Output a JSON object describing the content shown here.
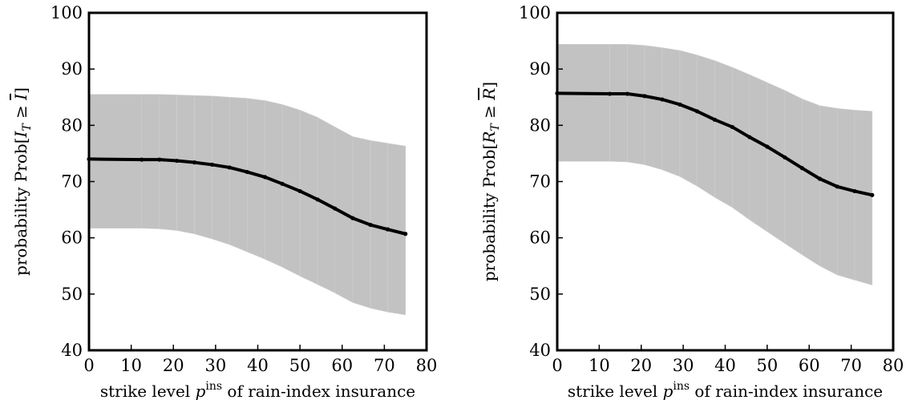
{
  "chart_data": [
    {
      "type": "line",
      "title": "",
      "xlabel": {
        "pre": "strike level ",
        "var": "p",
        "sup": "ins",
        "post": " of rain-index insurance"
      },
      "ylabel": {
        "pre": "probability Prob[",
        "var": "I",
        "sub": "T",
        "rel": " ≥ ",
        "bar": "I",
        "post": "]"
      },
      "xlim": [
        0,
        80
      ],
      "ylim": [
        40,
        100
      ],
      "xticks": [
        "0",
        "10",
        "20",
        "30",
        "40",
        "50",
        "60",
        "70",
        "80"
      ],
      "yticks": [
        "40",
        "50",
        "60",
        "70",
        "80",
        "90",
        "100"
      ],
      "grid": false,
      "series": [
        {
          "kind": "line",
          "x": [
            0,
            12.5,
            16.7,
            20.8,
            25,
            29.2,
            33.3,
            37.5,
            41.7,
            45.8,
            50,
            54.2,
            58.3,
            62.5,
            66.7,
            70.8,
            75
          ],
          "y": [
            74.0,
            73.9,
            73.9,
            73.7,
            73.4,
            73.0,
            72.5,
            71.7,
            70.8,
            69.6,
            68.3,
            66.8,
            65.2,
            63.5,
            62.3,
            61.5,
            60.7
          ]
        },
        {
          "kind": "band",
          "x": [
            0,
            12.5,
            16.7,
            20.8,
            25,
            29.2,
            33.3,
            37.5,
            41.7,
            45.8,
            50,
            54.2,
            58.3,
            62.5,
            66.7,
            70.8,
            75
          ],
          "upper": [
            85.5,
            85.5,
            85.5,
            85.4,
            85.3,
            85.2,
            85.0,
            84.8,
            84.4,
            83.7,
            82.7,
            81.4,
            79.7,
            78.0,
            77.3,
            76.8,
            76.3
          ],
          "lower": [
            61.7,
            61.7,
            61.6,
            61.3,
            60.7,
            59.8,
            58.8,
            57.5,
            56.2,
            54.8,
            53.2,
            51.7,
            50.2,
            48.5,
            47.5,
            46.8,
            46.3
          ]
        }
      ]
    },
    {
      "type": "line",
      "title": "",
      "xlabel": {
        "pre": "strike level ",
        "var": "p",
        "sup": "ins",
        "post": " of rain-index insurance"
      },
      "ylabel": {
        "pre": "probability Prob[",
        "var": "R",
        "sub": "T",
        "rel": " ≥ ",
        "bar": "R",
        "post": "]"
      },
      "xlim": [
        0,
        80
      ],
      "ylim": [
        40,
        100
      ],
      "xticks": [
        "0",
        "10",
        "20",
        "30",
        "40",
        "50",
        "60",
        "70",
        "80"
      ],
      "yticks": [
        "40",
        "50",
        "60",
        "70",
        "80",
        "90",
        "100"
      ],
      "grid": false,
      "series": [
        {
          "kind": "line",
          "x": [
            0,
            12.5,
            16.7,
            20.8,
            25,
            29.2,
            33.3,
            37.5,
            41.7,
            45.8,
            50,
            54.2,
            58.3,
            62.5,
            66.7,
            70.8,
            75
          ],
          "y": [
            85.7,
            85.6,
            85.6,
            85.2,
            84.6,
            83.7,
            82.5,
            81.0,
            79.7,
            77.9,
            76.2,
            74.3,
            72.4,
            70.5,
            69.1,
            68.3,
            67.6
          ]
        },
        {
          "kind": "band",
          "x": [
            0,
            12.5,
            16.7,
            20.8,
            25,
            29.2,
            33.3,
            37.5,
            41.7,
            45.8,
            50,
            54.2,
            58.3,
            62.5,
            66.7,
            70.8,
            75
          ],
          "upper": [
            94.4,
            94.4,
            94.4,
            94.2,
            93.8,
            93.3,
            92.5,
            91.5,
            90.3,
            89.0,
            87.6,
            86.2,
            84.7,
            83.5,
            83.0,
            82.7,
            82.5
          ],
          "lower": [
            73.6,
            73.6,
            73.5,
            73.0,
            72.1,
            70.9,
            69.2,
            67.2,
            65.4,
            63.2,
            61.1,
            59.0,
            57.0,
            55.0,
            53.4,
            52.5,
            51.6
          ]
        }
      ]
    }
  ],
  "colors": {
    "band": "#c2c2c2",
    "line": "#000000",
    "axes": "#000000"
  }
}
